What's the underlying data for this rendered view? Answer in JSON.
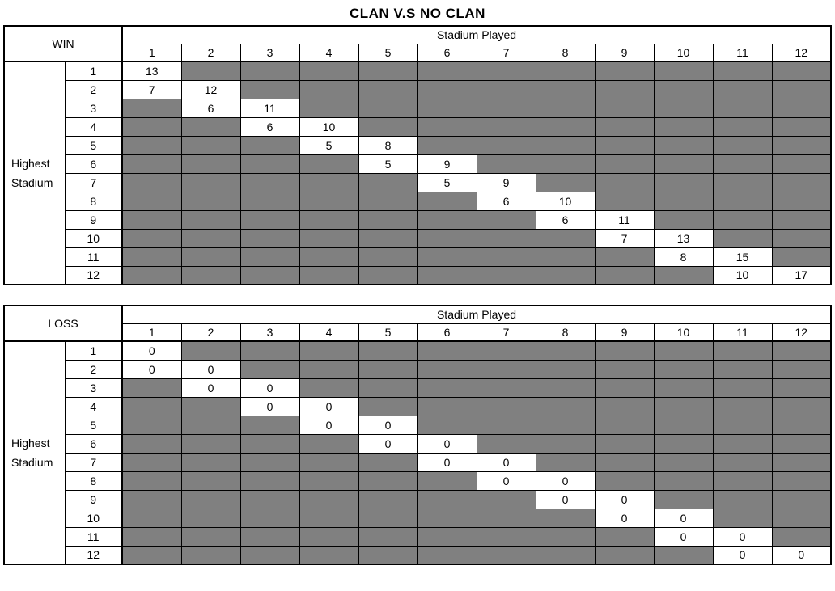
{
  "title": "CLAN V.S NO CLAN",
  "colors": {
    "filled_cell": "#808080",
    "empty_cell": "#ffffff",
    "border": "#000000",
    "background": "#ffffff",
    "text": "#000000"
  },
  "tables": [
    {
      "corner_label": "WIN",
      "column_group_label": "Stadium Played",
      "row_group_label_lines": [
        "Highest",
        "Stadium"
      ],
      "columns": [
        "1",
        "2",
        "3",
        "4",
        "5",
        "6",
        "7",
        "8",
        "9",
        "10",
        "11",
        "12"
      ],
      "rows": [
        {
          "label": "1",
          "values": [
            13,
            null,
            null,
            null,
            null,
            null,
            null,
            null,
            null,
            null,
            null,
            null
          ]
        },
        {
          "label": "2",
          "values": [
            7,
            12,
            null,
            null,
            null,
            null,
            null,
            null,
            null,
            null,
            null,
            null
          ]
        },
        {
          "label": "3",
          "values": [
            null,
            6,
            11,
            null,
            null,
            null,
            null,
            null,
            null,
            null,
            null,
            null
          ]
        },
        {
          "label": "4",
          "values": [
            null,
            null,
            6,
            10,
            null,
            null,
            null,
            null,
            null,
            null,
            null,
            null
          ]
        },
        {
          "label": "5",
          "values": [
            null,
            null,
            null,
            5,
            8,
            null,
            null,
            null,
            null,
            null,
            null,
            null
          ]
        },
        {
          "label": "6",
          "values": [
            null,
            null,
            null,
            null,
            5,
            9,
            null,
            null,
            null,
            null,
            null,
            null
          ]
        },
        {
          "label": "7",
          "values": [
            null,
            null,
            null,
            null,
            null,
            5,
            9,
            null,
            null,
            null,
            null,
            null
          ]
        },
        {
          "label": "8",
          "values": [
            null,
            null,
            null,
            null,
            null,
            null,
            6,
            10,
            null,
            null,
            null,
            null
          ]
        },
        {
          "label": "9",
          "values": [
            null,
            null,
            null,
            null,
            null,
            null,
            null,
            6,
            11,
            null,
            null,
            null
          ]
        },
        {
          "label": "10",
          "values": [
            null,
            null,
            null,
            null,
            null,
            null,
            null,
            null,
            7,
            13,
            null,
            null
          ]
        },
        {
          "label": "11",
          "values": [
            null,
            null,
            null,
            null,
            null,
            null,
            null,
            null,
            null,
            8,
            15,
            null
          ]
        },
        {
          "label": "12",
          "values": [
            null,
            null,
            null,
            null,
            null,
            null,
            null,
            null,
            null,
            null,
            10,
            17
          ]
        }
      ]
    },
    {
      "corner_label": "LOSS",
      "column_group_label": "Stadium Played",
      "row_group_label_lines": [
        "Highest",
        "Stadium"
      ],
      "columns": [
        "1",
        "2",
        "3",
        "4",
        "5",
        "6",
        "7",
        "8",
        "9",
        "10",
        "11",
        "12"
      ],
      "rows": [
        {
          "label": "1",
          "values": [
            0,
            null,
            null,
            null,
            null,
            null,
            null,
            null,
            null,
            null,
            null,
            null
          ]
        },
        {
          "label": "2",
          "values": [
            0,
            0,
            null,
            null,
            null,
            null,
            null,
            null,
            null,
            null,
            null,
            null
          ]
        },
        {
          "label": "3",
          "values": [
            null,
            0,
            0,
            null,
            null,
            null,
            null,
            null,
            null,
            null,
            null,
            null
          ]
        },
        {
          "label": "4",
          "values": [
            null,
            null,
            0,
            0,
            null,
            null,
            null,
            null,
            null,
            null,
            null,
            null
          ]
        },
        {
          "label": "5",
          "values": [
            null,
            null,
            null,
            0,
            0,
            null,
            null,
            null,
            null,
            null,
            null,
            null
          ]
        },
        {
          "label": "6",
          "values": [
            null,
            null,
            null,
            null,
            0,
            0,
            null,
            null,
            null,
            null,
            null,
            null
          ]
        },
        {
          "label": "7",
          "values": [
            null,
            null,
            null,
            null,
            null,
            0,
            0,
            null,
            null,
            null,
            null,
            null
          ]
        },
        {
          "label": "8",
          "values": [
            null,
            null,
            null,
            null,
            null,
            null,
            0,
            0,
            null,
            null,
            null,
            null
          ]
        },
        {
          "label": "9",
          "values": [
            null,
            null,
            null,
            null,
            null,
            null,
            null,
            0,
            0,
            null,
            null,
            null
          ]
        },
        {
          "label": "10",
          "values": [
            null,
            null,
            null,
            null,
            null,
            null,
            null,
            null,
            0,
            0,
            null,
            null
          ]
        },
        {
          "label": "11",
          "values": [
            null,
            null,
            null,
            null,
            null,
            null,
            null,
            null,
            null,
            0,
            0,
            null
          ]
        },
        {
          "label": "12",
          "values": [
            null,
            null,
            null,
            null,
            null,
            null,
            null,
            null,
            null,
            null,
            0,
            0
          ]
        }
      ]
    }
  ]
}
